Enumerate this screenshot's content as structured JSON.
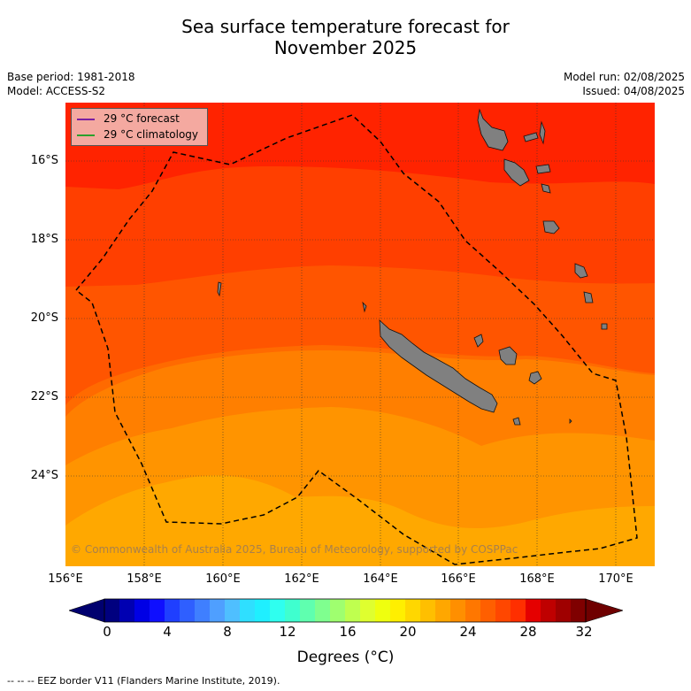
{
  "title_line1": "Sea surface temperature forecast for",
  "title_line2": "November 2025",
  "meta_left": {
    "base_period": "Base period: 1981-2018",
    "model": "Model: ACCESS-S2"
  },
  "meta_right": {
    "model_run": "Model run: 02/08/2025",
    "issued": "Issued: 04/08/2025"
  },
  "legend": [
    {
      "label": "29 °C  forecast",
      "color": "#7a1fa2"
    },
    {
      "label": "29 °C  climatology",
      "color": "#2ca02c"
    }
  ],
  "lat_labels": [
    "16°S",
    "18°S",
    "20°S",
    "22°S",
    "24°S"
  ],
  "lon_labels": [
    "156°E",
    "158°E",
    "160°E",
    "162°E",
    "164°E",
    "166°E",
    "168°E",
    "170°E"
  ],
  "copyright": "© Commonwealth of Australia 2025, Bureau of Meteorology, supported by COSPPac",
  "colorbar": {
    "ticks": [
      "0",
      "4",
      "8",
      "12",
      "16",
      "20",
      "24",
      "28",
      "32"
    ],
    "label": "Degrees (°C)",
    "colors": [
      "#00007f",
      "#0000b2",
      "#0000e5",
      "#0f0fff",
      "#1f3fff",
      "#2f5fff",
      "#3f7fff",
      "#4f9fff",
      "#4fbfff",
      "#2fdfff",
      "#1fefff",
      "#2fffef",
      "#3fffcf",
      "#5fffaf",
      "#7fff8f",
      "#9fff6f",
      "#bfff4f",
      "#dfff2f",
      "#efff0f",
      "#ffef00",
      "#ffd700",
      "#ffbf00",
      "#ffa700",
      "#ff8f00",
      "#ff7700",
      "#ff5f00",
      "#ff4700",
      "#ff2f00",
      "#e50000",
      "#bf0000",
      "#9f0000",
      "#7f0000"
    ]
  },
  "footer": "--  --  -- EEZ border V11 (Flanders Marine Institute, 2019).",
  "map_colors": {
    "band1": "#ff2300",
    "band2": "#ff3f00",
    "band3": "#ff5500",
    "band4": "#ff6a00",
    "band5": "#ff7f00",
    "band6": "#ff9400",
    "band7": "#ffa800",
    "land": "#808080"
  }
}
